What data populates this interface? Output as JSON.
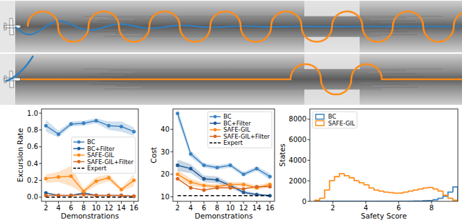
{
  "chart_data": [
    {
      "type": "line",
      "x_label": "Demonstrations",
      "y_label": "Excursion Rate",
      "x": [
        2,
        4,
        6,
        8,
        10,
        12,
        14,
        16
      ],
      "xlim": [
        1.3,
        16.7
      ],
      "xticks": [
        2,
        4,
        6,
        8,
        10,
        12,
        14,
        16
      ],
      "ylim": [
        -0.05,
        1.05
      ],
      "yticks": [
        {
          "value": 0,
          "label": "0.0"
        },
        {
          "value": 0.2,
          "label": "0.2"
        },
        {
          "value": 0.4,
          "label": "0.4"
        },
        {
          "value": 0.6,
          "label": "0.6"
        },
        {
          "value": 0.8,
          "label": "0.8"
        },
        {
          "value": 1,
          "label": "1.0"
        }
      ],
      "legend": "center right",
      "series": [
        {
          "name": "BC",
          "color": "#3b82c0",
          "marker": "circle",
          "line_style": "solid",
          "values": [
            0.85,
            0.75,
            0.87,
            0.88,
            0.91,
            0.85,
            0.84,
            0.78
          ],
          "errors": [
            0.07,
            0.04,
            0.03,
            0.03,
            0.03,
            0.05,
            0.06,
            0.05
          ]
        },
        {
          "name": "BC+Filter",
          "color": "#1f5a96",
          "marker": "circle",
          "line_style": "solid",
          "values": [
            0.05,
            0.02,
            0.02,
            0.05,
            0.02,
            0.02,
            0.02,
            0.01
          ]
        },
        {
          "name": "SAFE-GIL",
          "color": "#ff8c1a",
          "marker": "circle",
          "line_style": "solid",
          "values": [
            0.22,
            0.24,
            0.25,
            0.07,
            0.19,
            0.23,
            0.09,
            0.2
          ],
          "errors": [
            0.05,
            0.06,
            0.12,
            0.03,
            0.05,
            0.04,
            0.02,
            0.07
          ]
        },
        {
          "name": "SAFE-GIL+Filter",
          "color": "#d9661f",
          "marker": "circle",
          "line_style": "solid",
          "values": [
            0.02,
            0.02,
            0.02,
            0.03,
            0.02,
            0.02,
            0.02,
            0.01
          ]
        },
        {
          "name": "Expert",
          "color": "#000000",
          "marker": "none",
          "line_style": "dashed",
          "values": [
            0,
            0,
            0,
            0,
            0,
            0,
            0,
            0
          ]
        }
      ]
    },
    {
      "type": "line",
      "x_label": "Demonstrations",
      "y_label": "Cost",
      "x": [
        2,
        4,
        6,
        8,
        10,
        12,
        14,
        16
      ],
      "xlim": [
        1.3,
        16.7
      ],
      "xticks": [
        2,
        4,
        6,
        8,
        10,
        12,
        14,
        16
      ],
      "ylim": [
        8,
        49
      ],
      "yticks": [
        10,
        20,
        30,
        40
      ],
      "legend": "upper right",
      "series": [
        {
          "name": "BC",
          "color": "#3b82c0",
          "marker": "circle",
          "line_style": "solid",
          "values": [
            47,
            29,
            24,
            23,
            24,
            20,
            22.5,
            19
          ],
          "errors": [
            2.5,
            1.5,
            1,
            1,
            1,
            1,
            1,
            1.5
          ]
        },
        {
          "name": "BC+Filter",
          "color": "#1f5a96",
          "marker": "circle",
          "line_style": "solid",
          "values": [
            24,
            22.5,
            18,
            17.5,
            15,
            12,
            11,
            10.5
          ],
          "errors": [
            2.5,
            2,
            1.5,
            1.5,
            1,
            0.8,
            0.6,
            0.5
          ]
        },
        {
          "name": "SAFE-GIL",
          "color": "#ff8c1a",
          "marker": "circle",
          "line_style": "solid",
          "values": [
            20,
            16.5,
            15,
            14.5,
            15.5,
            15.5,
            14,
            15.5
          ],
          "errors": [
            2,
            1.5,
            1,
            1,
            1,
            1,
            1,
            1
          ]
        },
        {
          "name": "SAFE-GIL+Filter",
          "color": "#d9661f",
          "marker": "circle",
          "line_style": "solid",
          "values": [
            18,
            14,
            13,
            14,
            14,
            13.5,
            14.5,
            14.5
          ]
        },
        {
          "name": "Expert",
          "color": "#000000",
          "marker": "none",
          "line_style": "dashed",
          "values": [
            10.5,
            10.5,
            10.5,
            10.5,
            10.5,
            10.5,
            10.5,
            10.5
          ]
        }
      ]
    },
    {
      "type": "histogram",
      "x_label": "Safety Score",
      "y_label": "States",
      "bins": [
        0.9,
        1.2,
        1.5,
        1.8,
        2.1,
        2.4,
        2.7,
        3.0,
        3.3,
        3.6,
        3.9,
        4.2,
        4.5,
        4.8,
        5.1,
        5.4,
        5.7,
        6.0,
        6.3,
        6.6,
        6.9,
        7.2,
        7.5,
        7.8,
        8.1,
        8.4,
        8.7,
        9.0,
        9.3,
        9.6
      ],
      "xlim": [
        0.6,
        9.6
      ],
      "xticks": [
        2,
        4,
        6,
        8
      ],
      "ylim": [
        0,
        9000
      ],
      "yticks": [
        0,
        2000,
        4000,
        6000,
        8000
      ],
      "legend": "upper left",
      "series": [
        {
          "name": "BC",
          "color": "#3b82c0",
          "values": [
            0,
            0,
            0,
            0,
            0,
            0,
            0,
            0,
            0,
            0,
            0,
            0,
            0,
            0,
            0,
            0,
            0,
            0,
            0,
            10,
            20,
            30,
            50,
            80,
            150,
            300,
            500,
            900,
            1400
          ]
        },
        {
          "name": "SAFE-GIL",
          "color": "#ff8c1a",
          "values": [
            100,
            300,
            1100,
            2000,
            2400,
            2700,
            2500,
            2300,
            2000,
            1800,
            1600,
            1300,
            1100,
            1000,
            900,
            850,
            800,
            800,
            900,
            1000,
            1100,
            1200,
            1300,
            1350,
            1200,
            1000,
            600,
            300,
            100
          ]
        }
      ]
    }
  ]
}
